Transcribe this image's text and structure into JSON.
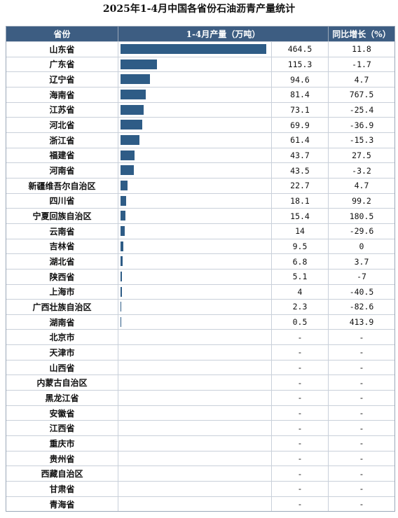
{
  "title": "2025年1-4月中国各省份石油沥青产量统计",
  "headers": {
    "province": "省份",
    "output": "1-4月产量（万吨）",
    "growth": "同比增长（%）"
  },
  "colors": {
    "header_bg": "#3d5d82",
    "bar": "#2e5c86"
  },
  "chart_data": {
    "type": "table",
    "title": "2025年1-4月中国各省份石油沥青产量统计",
    "columns": [
      "省份",
      "1-4月产量（万吨）",
      "同比增长（%）"
    ],
    "rows": [
      {
        "province": "山东省",
        "output": "464.5",
        "growth": "11.8",
        "value": 464.5
      },
      {
        "province": "广东省",
        "output": "115.3",
        "growth": "-1.7",
        "value": 115.3
      },
      {
        "province": "辽宁省",
        "output": "94.6",
        "growth": "4.7",
        "value": 94.6
      },
      {
        "province": "海南省",
        "output": "81.4",
        "growth": "767.5",
        "value": 81.4
      },
      {
        "province": "江苏省",
        "output": "73.1",
        "growth": "-25.4",
        "value": 73.1
      },
      {
        "province": "河北省",
        "output": "69.9",
        "growth": "-36.9",
        "value": 69.9
      },
      {
        "province": "浙江省",
        "output": "61.4",
        "growth": "-15.3",
        "value": 61.4
      },
      {
        "province": "福建省",
        "output": "43.7",
        "growth": "27.5",
        "value": 43.7
      },
      {
        "province": "河南省",
        "output": "43.5",
        "growth": "-3.2",
        "value": 43.5
      },
      {
        "province": "新疆维吾尔自治区",
        "output": "22.7",
        "growth": "4.7",
        "value": 22.7
      },
      {
        "province": "四川省",
        "output": "18.1",
        "growth": "99.2",
        "value": 18.1
      },
      {
        "province": "宁夏回族自治区",
        "output": "15.4",
        "growth": "180.5",
        "value": 15.4
      },
      {
        "province": "云南省",
        "output": "14",
        "growth": "-29.6",
        "value": 14
      },
      {
        "province": "吉林省",
        "output": "9.5",
        "growth": "0",
        "value": 9.5
      },
      {
        "province": "湖北省",
        "output": "6.8",
        "growth": "3.7",
        "value": 6.8
      },
      {
        "province": "陕西省",
        "output": "5.1",
        "growth": "-7",
        "value": 5.1
      },
      {
        "province": "上海市",
        "output": "4",
        "growth": "-40.5",
        "value": 4
      },
      {
        "province": "广西壮族自治区",
        "output": "2.3",
        "growth": "-82.6",
        "value": 2.3
      },
      {
        "province": "湖南省",
        "output": "0.5",
        "growth": "413.9",
        "value": 0.5
      },
      {
        "province": "北京市",
        "output": "-",
        "growth": "-",
        "value": 0
      },
      {
        "province": "天津市",
        "output": "-",
        "growth": "-",
        "value": 0
      },
      {
        "province": "山西省",
        "output": "-",
        "growth": "-",
        "value": 0
      },
      {
        "province": "内蒙古自治区",
        "output": "-",
        "growth": "-",
        "value": 0
      },
      {
        "province": "黑龙江省",
        "output": "-",
        "growth": "-",
        "value": 0
      },
      {
        "province": "安徽省",
        "output": "-",
        "growth": "-",
        "value": 0
      },
      {
        "province": "江西省",
        "output": "-",
        "growth": "-",
        "value": 0
      },
      {
        "province": "重庆市",
        "output": "-",
        "growth": "-",
        "value": 0
      },
      {
        "province": "贵州省",
        "output": "-",
        "growth": "-",
        "value": 0
      },
      {
        "province": "西藏自治区",
        "output": "-",
        "growth": "-",
        "value": 0
      },
      {
        "province": "甘肃省",
        "output": "-",
        "growth": "-",
        "value": 0
      },
      {
        "province": "青海省",
        "output": "-",
        "growth": "-",
        "value": 0
      }
    ]
  }
}
